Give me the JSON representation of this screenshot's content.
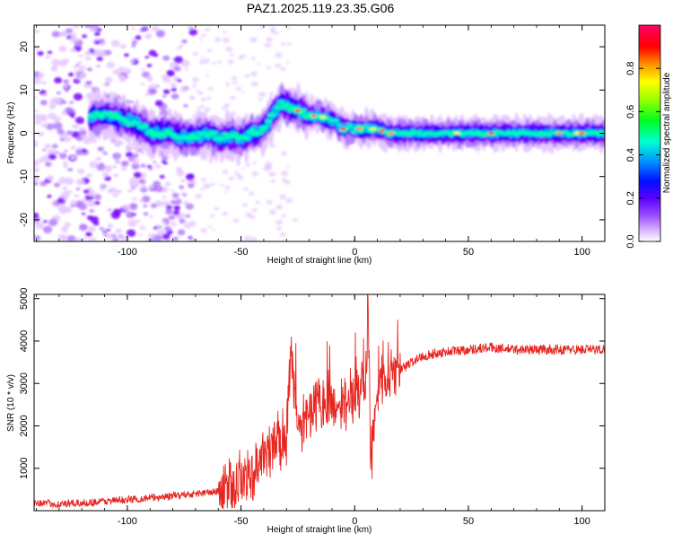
{
  "title": "PAZ1.2025.119.23.35.G06",
  "chart_data": [
    {
      "type": "heatmap",
      "xlabel": "Height of straight line (km)",
      "ylabel": "Frequency (Hz)",
      "xlim": [
        -141,
        110
      ],
      "ylim": [
        -25,
        25
      ],
      "xticks": [
        -100,
        -50,
        0,
        50,
        100
      ],
      "yticks": [
        -20,
        -10,
        0,
        10,
        20
      ],
      "colorbar": {
        "label": "Normalized spectral amplitude",
        "range": [
          0,
          1
        ],
        "ticks": [
          "0.0",
          "0.2",
          "0.4",
          "0.6",
          "0.8"
        ]
      },
      "ridge": {
        "x": [
          -115,
          -108,
          -100,
          -95,
          -90,
          -85,
          -80,
          -75,
          -70,
          -65,
          -60,
          -55,
          -50,
          -45,
          -40,
          -35,
          -32,
          -28,
          -24,
          -20,
          -15,
          -10,
          -5,
          0,
          5,
          10,
          15,
          20,
          30,
          40,
          50,
          60,
          70,
          80,
          90,
          100,
          110
        ],
        "y": [
          4,
          4,
          3,
          2,
          0,
          0,
          0,
          -1,
          -1,
          0,
          -1,
          -1,
          -1,
          0,
          1,
          5,
          7,
          6,
          5,
          4,
          4,
          3,
          1,
          1,
          1,
          1,
          0,
          0,
          0,
          0,
          0,
          0,
          0,
          0,
          0,
          0,
          0
        ]
      },
      "colors": [
        "#ffffff",
        "#e6c8ff",
        "#b47cff",
        "#7a00ff",
        "#1a00ff",
        "#00b4ff",
        "#00ffaa",
        "#00ff00",
        "#ffff00",
        "#ff7f00",
        "#ff0000",
        "#ff0066"
      ]
    },
    {
      "type": "line",
      "xlabel": "Height of straight line (km)",
      "ylabel": "SNR (10 * v/v)",
      "xlim": [
        -141,
        110
      ],
      "ylim": [
        0,
        5100
      ],
      "xticks": [
        -100,
        -50,
        0,
        50,
        100
      ],
      "yticks": [
        1000,
        2000,
        3000,
        4000,
        5000
      ],
      "series": [
        {
          "color": "#e8241f",
          "x": [
            -141,
            -130,
            -120,
            -110,
            -100,
            -90,
            -80,
            -70,
            -60,
            -55,
            -50,
            -45,
            -40,
            -35,
            -30,
            -28,
            -25,
            -20,
            -15,
            -10,
            -5,
            0,
            5,
            6,
            7,
            10,
            15,
            20,
            25,
            30,
            40,
            50,
            60,
            70,
            80,
            90,
            100,
            110
          ],
          "values": [
            200,
            150,
            180,
            220,
            260,
            300,
            350,
            400,
            450,
            500,
            700,
            900,
            1300,
            1600,
            1800,
            3900,
            1900,
            2300,
            2700,
            2500,
            2500,
            2700,
            3000,
            5100,
            1000,
            3100,
            3200,
            3300,
            3500,
            3650,
            3750,
            3800,
            3850,
            3800,
            3800,
            3800,
            3800,
            3800
          ]
        }
      ]
    }
  ]
}
